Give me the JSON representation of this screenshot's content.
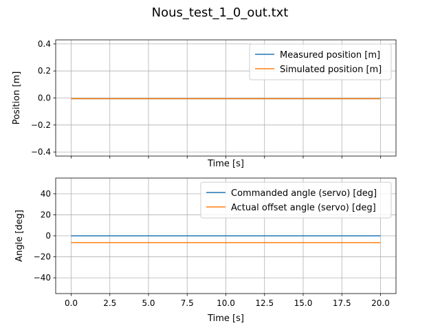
{
  "chart_data": {
    "title": "Nous_test_1_0_out.txt",
    "xlabel": "Time [s]",
    "xlim": [
      -1.0,
      21.0
    ],
    "xticks": [
      0,
      2.5,
      5,
      7.5,
      10,
      12.5,
      15,
      17.5,
      20
    ],
    "xtick_labels": [
      "0.0",
      "2.5",
      "5.0",
      "7.5",
      "10.0",
      "12.5",
      "15.0",
      "17.5",
      "20.0"
    ],
    "grid": true,
    "subplots": [
      {
        "type": "line",
        "ylabel": "Position [m]",
        "xlabel": "Time [s]",
        "ylim": [
          -0.43,
          0.43
        ],
        "yticks": [
          -0.4,
          -0.2,
          0.0,
          0.2,
          0.4
        ],
        "ytick_labels": [
          "−0.4",
          "−0.2",
          "0.0",
          "0.2",
          "0.4"
        ],
        "show_xtick_labels": false,
        "legend": "top-right",
        "series": [
          {
            "name": "Measured position [m]",
            "color": "#1f77b4",
            "x": [
              0,
              20
            ],
            "y": [
              -0.005,
              -0.005
            ]
          },
          {
            "name": "Simulated position [m]",
            "color": "#ff7f0e",
            "x": [
              0,
              20
            ],
            "y": [
              -0.005,
              -0.005
            ]
          }
        ]
      },
      {
        "type": "line",
        "ylabel": "Angle [deg]",
        "xlabel": "Time [s]",
        "ylim": [
          -55,
          55
        ],
        "yticks": [
          -40,
          -20,
          0,
          20,
          40
        ],
        "ytick_labels": [
          "−40",
          "−20",
          "0",
          "20",
          "40"
        ],
        "show_xtick_labels": true,
        "legend": "top-right",
        "series": [
          {
            "name": "Commanded angle (servo) [deg]",
            "color": "#1f77b4",
            "x": [
              0,
              20
            ],
            "y": [
              0,
              0
            ]
          },
          {
            "name": "Actual offset angle (servo) [deg]",
            "color": "#ff7f0e",
            "x": [
              0,
              20
            ],
            "y": [
              -6.5,
              -6.5
            ]
          }
        ]
      }
    ]
  }
}
